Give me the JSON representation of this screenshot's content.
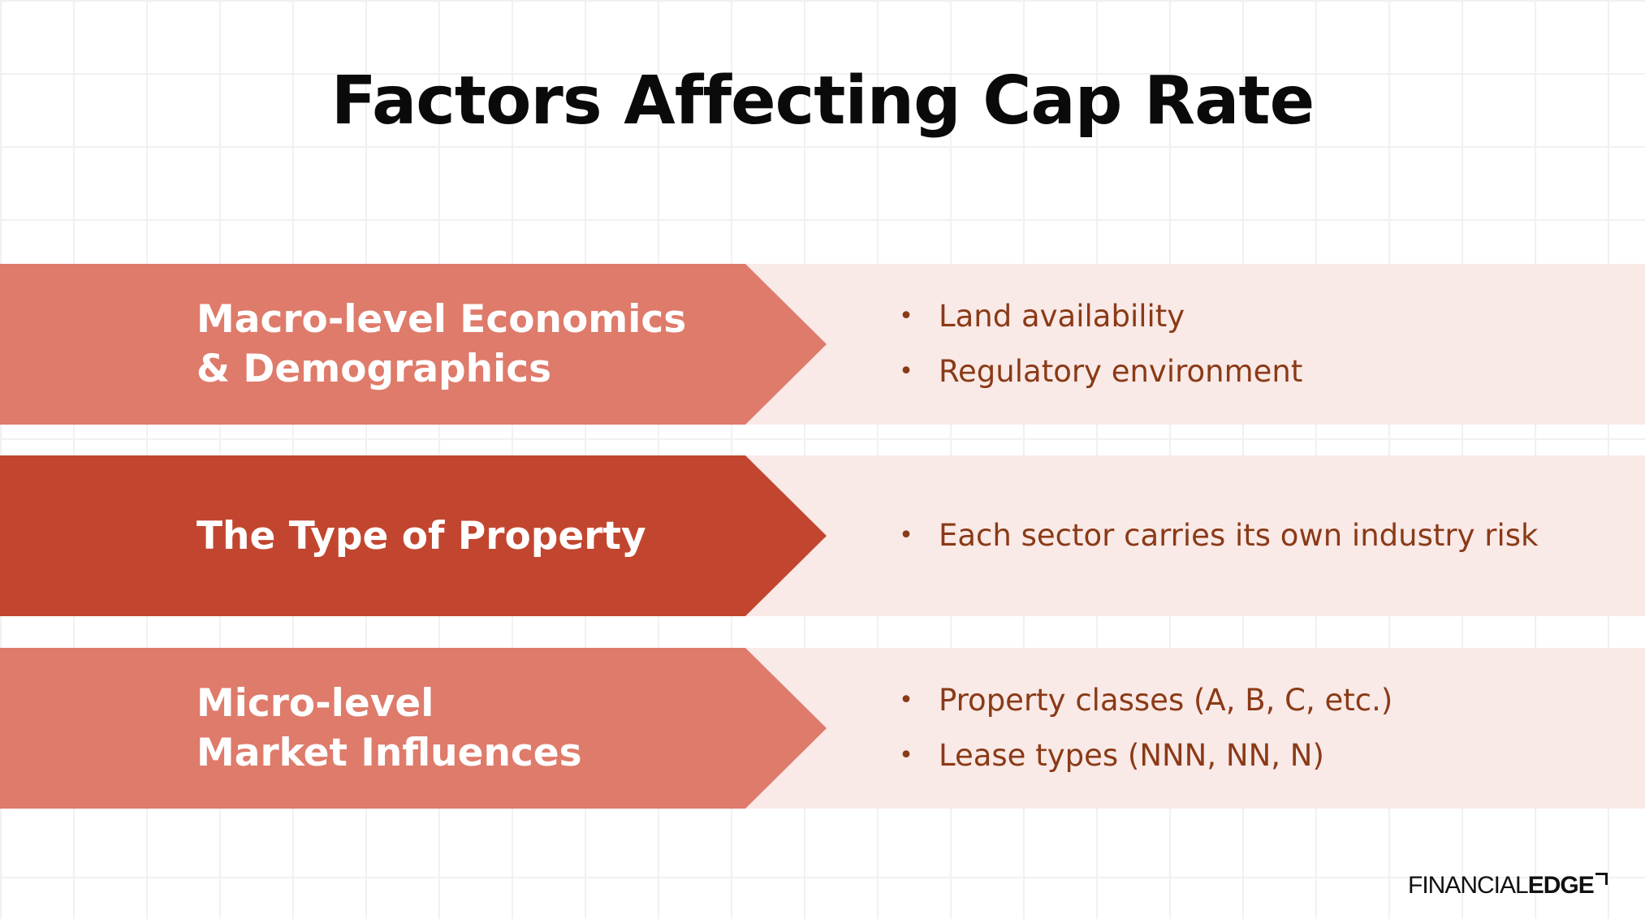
{
  "title": "Factors Affecting Cap Rate",
  "factors": [
    {
      "heading_lines": [
        "Macro-level Economics",
        "& Demographics"
      ],
      "bullets": [
        "Land availability",
        "Regulatory environment"
      ],
      "color": "#de7b6b"
    },
    {
      "heading_lines": [
        "The Type of Property"
      ],
      "bullets": [
        "Each sector carries its own industry risk"
      ],
      "color": "#c2462f"
    },
    {
      "heading_lines": [
        "Micro-level",
        "Market Influences"
      ],
      "bullets": [
        "Property classes (A, B, C, etc.)",
        "Lease types (NNN, NN, N)"
      ],
      "color": "#de7b6b"
    }
  ],
  "colors": {
    "panel_background": "#f9e9e7",
    "bullet_text": "#8a3a16",
    "heading_text": "#ffffff"
  },
  "logo": {
    "part1": "FINANCIAL",
    "part2": "EDGE",
    "icon": "corner-arrow-icon"
  }
}
